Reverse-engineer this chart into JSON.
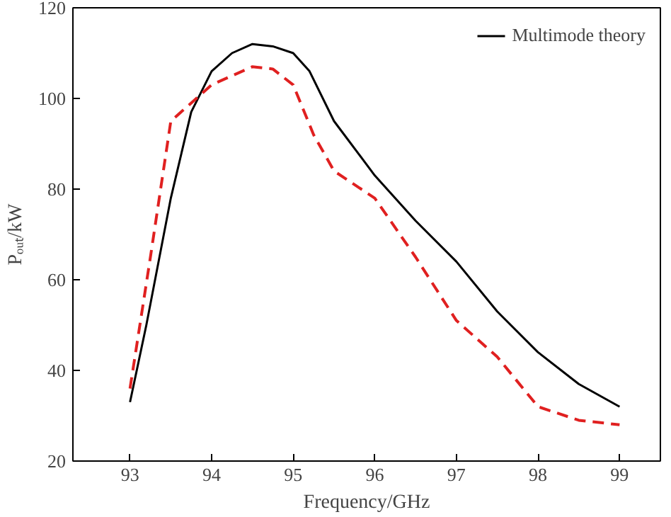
{
  "chart_data": {
    "type": "line",
    "xlabel": "Frequency/GHz",
    "ylabel": "Pₒᵤₜ/kW",
    "xlim": [
      92.3,
      99.5
    ],
    "ylim": [
      20,
      120
    ],
    "xticks": [
      93,
      94,
      95,
      96,
      97,
      98,
      99
    ],
    "yticks": [
      20,
      40,
      60,
      80,
      100,
      120
    ],
    "grid": false,
    "legend": "top right",
    "marker": "none",
    "series": [
      {
        "name": "Multimode theory",
        "color": "#000000",
        "line_style": "solid",
        "x": [
          93,
          93.2,
          93.5,
          93.75,
          94,
          94.25,
          94.5,
          94.75,
          95,
          95.2,
          95.5,
          96,
          96.5,
          97,
          97.5,
          98,
          98.5,
          99
        ],
        "values": [
          33,
          50,
          78,
          97,
          106,
          110,
          112,
          111.5,
          110,
          106,
          95,
          83,
          73,
          64,
          53,
          44,
          37,
          32
        ]
      },
      {
        "color": "#e02020",
        "line_style": "dashed",
        "x": [
          93,
          93.25,
          93.5,
          93.75,
          94,
          94.25,
          94.5,
          94.75,
          95,
          95.25,
          95.5,
          96,
          96.5,
          97,
          97.5,
          98,
          98.5,
          99
        ],
        "values": [
          36,
          65,
          95,
          99,
          103,
          105,
          107,
          106.5,
          103,
          92,
          84,
          78,
          65,
          51,
          43,
          32,
          29,
          28
        ]
      }
    ]
  }
}
